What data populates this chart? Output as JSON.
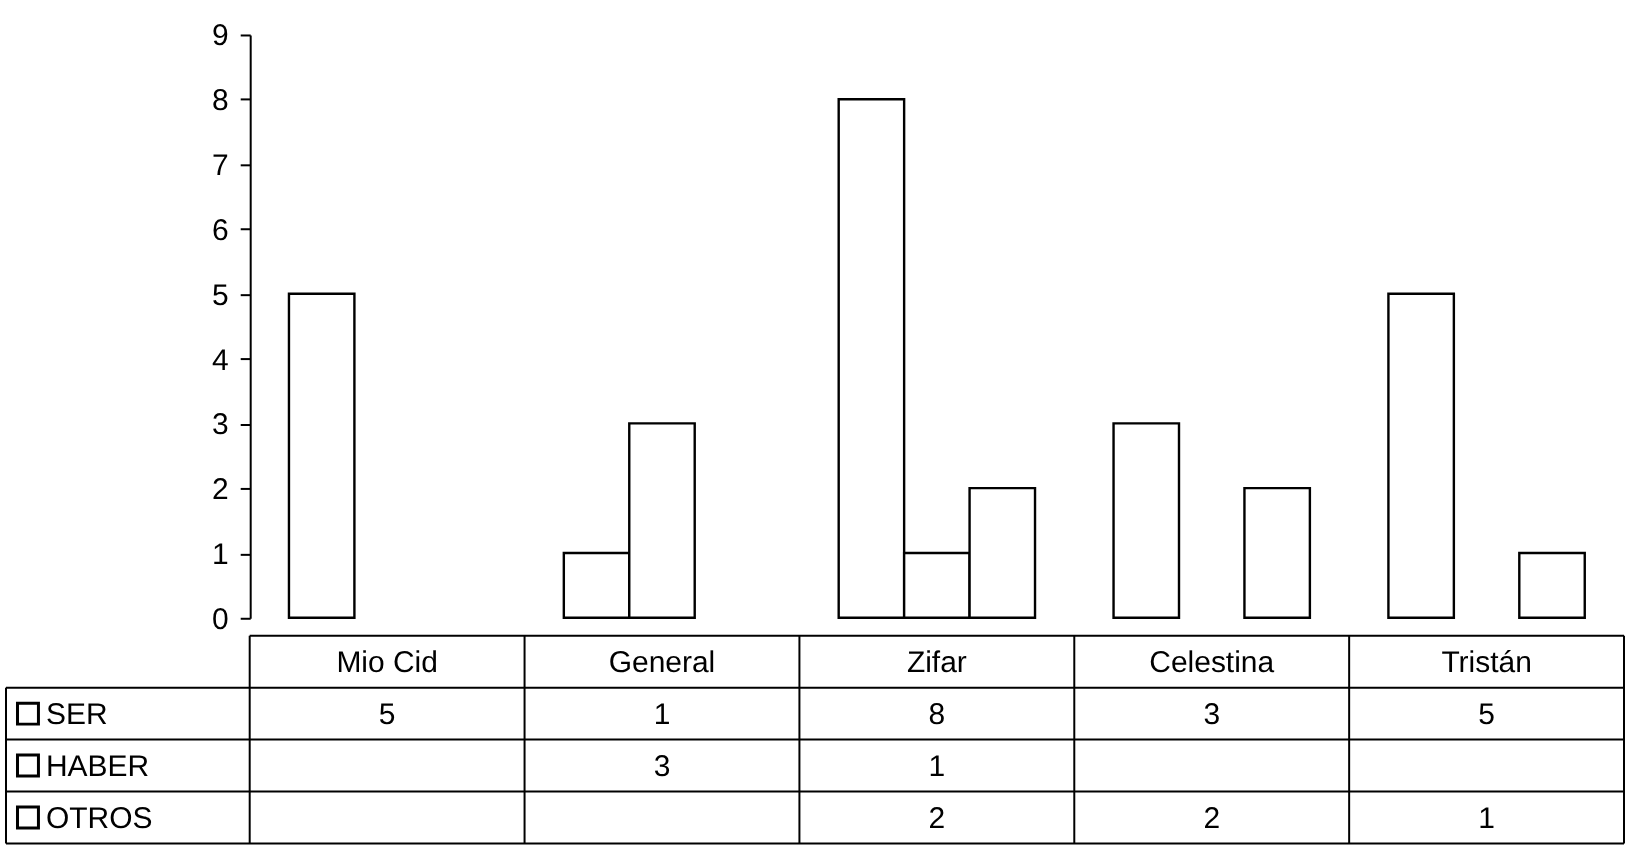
{
  "chart_data": {
    "type": "bar",
    "categories": [
      "Mio Cid",
      "General",
      "Zifar",
      "Celestina",
      "Tristán"
    ],
    "series": [
      {
        "name": "SER",
        "color": "#ffffff",
        "values": [
          5,
          1,
          8,
          3,
          5
        ]
      },
      {
        "name": "HABER",
        "color": "#ffffff",
        "values": [
          null,
          3,
          1,
          null,
          null
        ]
      },
      {
        "name": "OTROS",
        "color": "#ffffff",
        "values": [
          null,
          null,
          2,
          2,
          1
        ]
      }
    ],
    "ylim": [
      0,
      9
    ],
    "yticks": [
      0,
      1,
      2,
      3,
      4,
      5,
      6,
      7,
      8,
      9
    ],
    "grid": false,
    "data_labels": true,
    "legend": "bottom left"
  }
}
